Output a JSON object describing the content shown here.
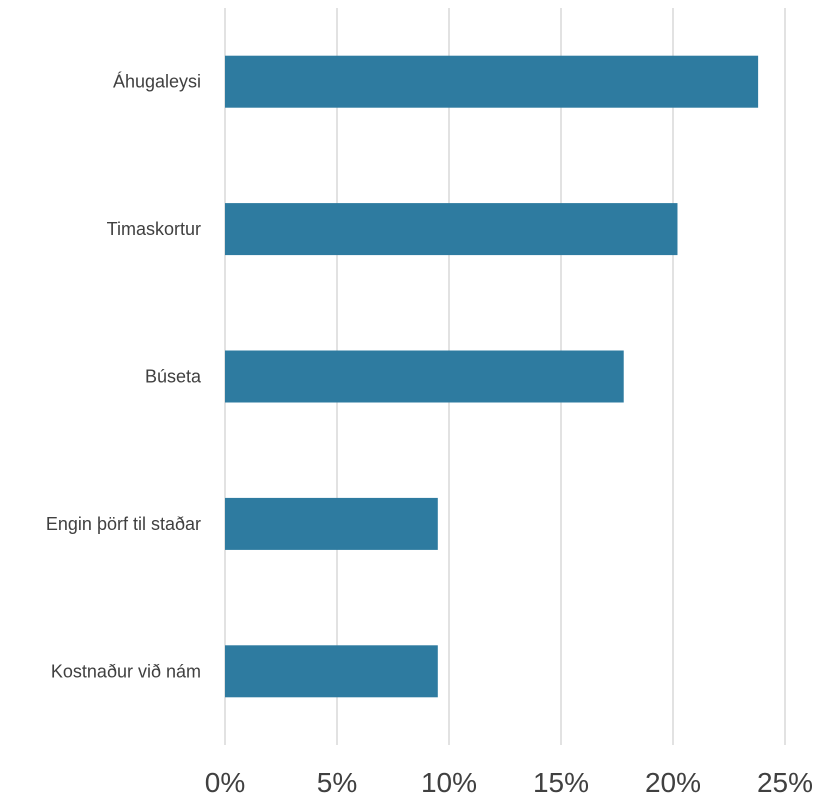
{
  "chart_data": {
    "type": "bar",
    "orientation": "horizontal",
    "categories": [
      "Áhugaleysi",
      "Timaskortur",
      "Búseta",
      "Engin þörf til staðar",
      "Kostnaður við nám"
    ],
    "values": [
      23.8,
      20.2,
      17.8,
      9.5,
      9.5
    ],
    "title": "",
    "xlabel": "",
    "ylabel": "",
    "xlim": [
      0,
      25
    ],
    "x_ticks": [
      "0%",
      "5%",
      "10%",
      "15%",
      "20%",
      "25%"
    ],
    "grid": "vertical",
    "legend": "none",
    "bar_color": "#2e7ba0",
    "grid_color": "#d9d9d9",
    "text_color": "#404040"
  }
}
